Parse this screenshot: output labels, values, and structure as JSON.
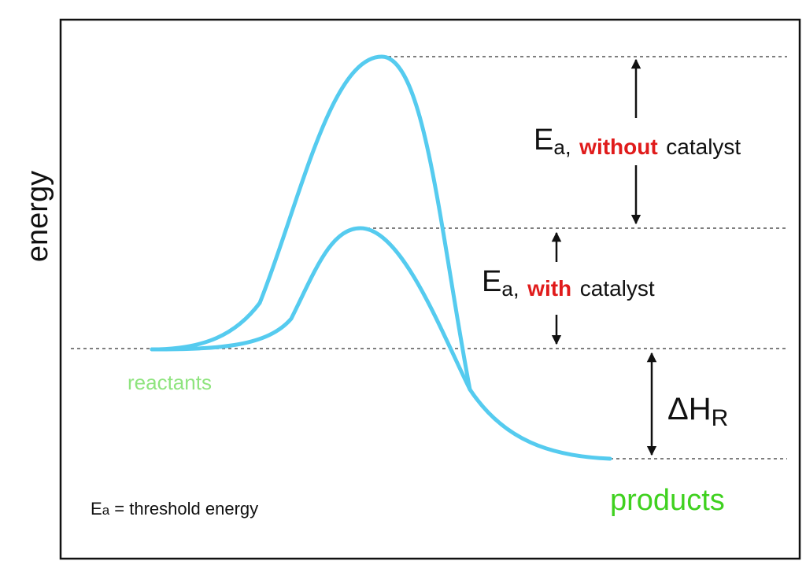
{
  "axis_label": "energy",
  "labels": {
    "reactants": "reactants",
    "products": "products"
  },
  "annotations": [
    {
      "symbol": "E",
      "subscript": "a",
      "separator": ",",
      "emphasis": "without",
      "rest": "catalyst"
    },
    {
      "symbol": "E",
      "subscript": "a",
      "separator": ",",
      "emphasis": "with",
      "rest": "catalyst"
    }
  ],
  "delta": {
    "symbol": "ΔH",
    "subscript": "R"
  },
  "footnote": {
    "symbol": "E",
    "subscript": "a",
    "rest": "= threshold energy"
  }
}
